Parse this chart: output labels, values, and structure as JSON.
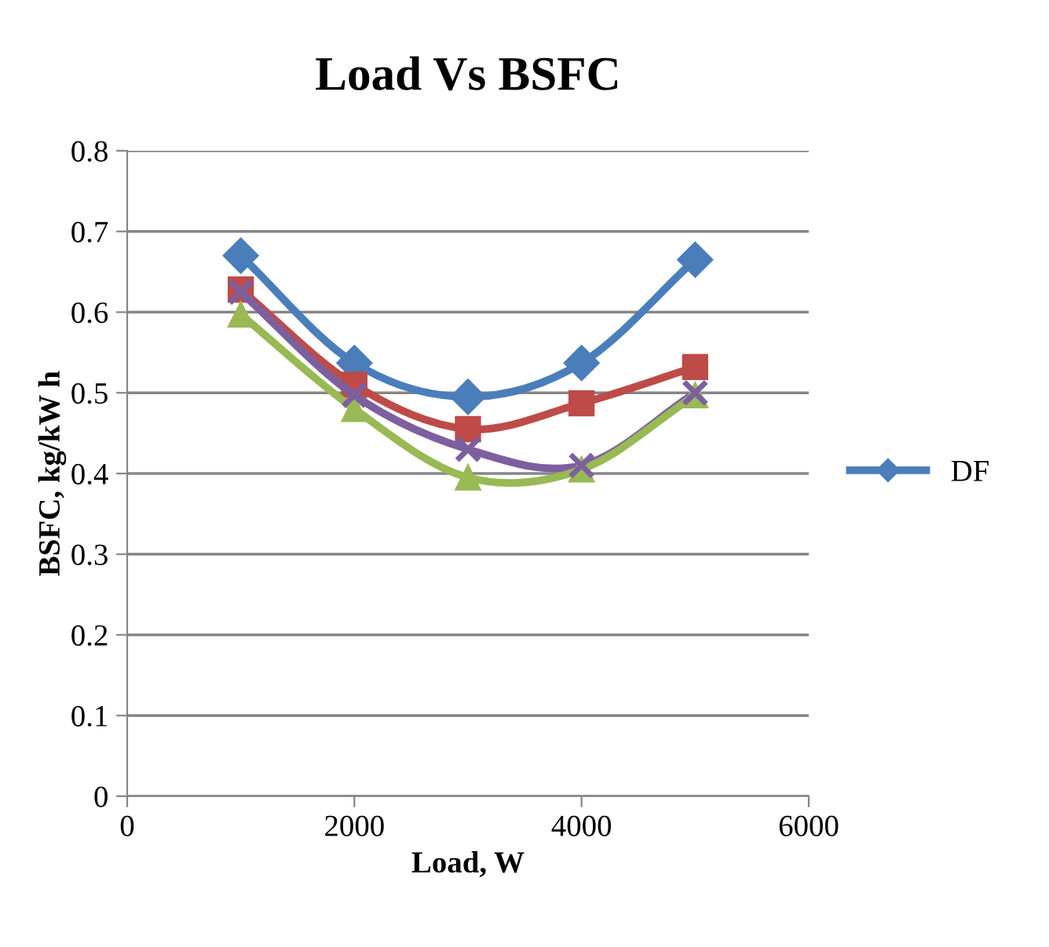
{
  "chart_data": {
    "type": "line",
    "title": "Load Vs BSFC",
    "xlabel": "Load, W",
    "ylabel": "BSFC, kg/kW h",
    "x": [
      1000,
      2000,
      3000,
      4000,
      5000
    ],
    "series": [
      {
        "name": "DF",
        "color": "#4a7ebb",
        "values": [
          0.67,
          0.537,
          0.495,
          0.537,
          0.665
        ],
        "marker": "diamond"
      },
      {
        "color": "#be4b48",
        "values": [
          0.628,
          0.51,
          0.455,
          0.487,
          0.532
        ],
        "marker": "square"
      },
      {
        "color": "#7d5fa0",
        "values": [
          0.625,
          0.497,
          0.43,
          0.41,
          0.5
        ],
        "marker": "cross"
      },
      {
        "color": "#98b954",
        "values": [
          0.597,
          0.48,
          0.395,
          0.405,
          0.497
        ],
        "marker": "triangle"
      }
    ],
    "xlim": [
      0,
      6000
    ],
    "xticks": [
      0,
      2000,
      4000,
      6000
    ],
    "ylim": [
      0,
      0.8
    ],
    "yticks": [
      0,
      0.1,
      0.2,
      0.3,
      0.4,
      0.5,
      0.6,
      0.7,
      0.8
    ],
    "grid": "y",
    "legend": "right",
    "line_style": "solid"
  }
}
